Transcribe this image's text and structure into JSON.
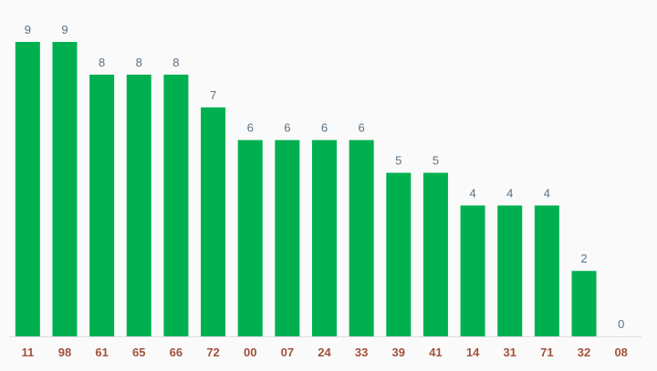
{
  "chart_data": {
    "type": "bar",
    "categories": [
      "11",
      "98",
      "61",
      "65",
      "66",
      "72",
      "00",
      "07",
      "24",
      "33",
      "39",
      "41",
      "14",
      "31",
      "71",
      "32",
      "08"
    ],
    "values": [
      9,
      9,
      8,
      8,
      8,
      7,
      6,
      6,
      6,
      6,
      5,
      5,
      4,
      4,
      4,
      2,
      0
    ],
    "title": "",
    "xlabel": "",
    "ylabel": "",
    "ylim": [
      0,
      9
    ],
    "grid": false,
    "legend": "none",
    "colors": {
      "bar": "#00b050",
      "value_label": "#5a7184",
      "category_label": "#a0523c",
      "baseline": "#dddddd",
      "background": "#fafafa"
    }
  }
}
